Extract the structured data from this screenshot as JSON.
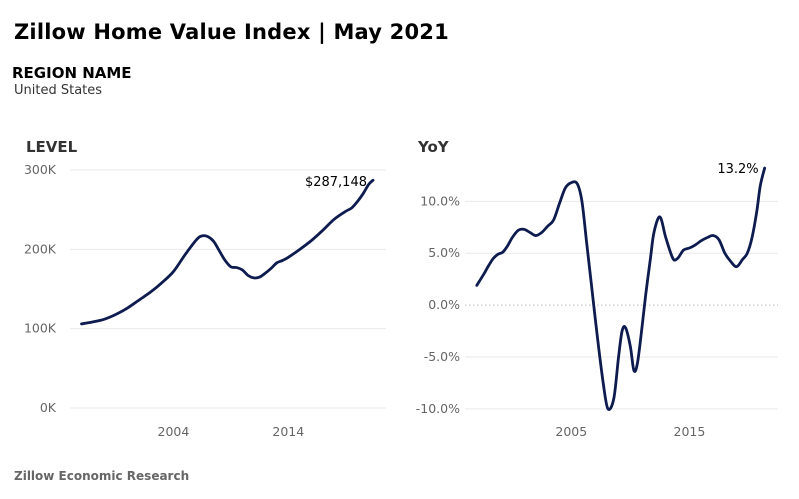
{
  "header": {
    "title": "Zillow Home Value Index | May 2021",
    "region_label": "REGION NAME",
    "region_value": "United States"
  },
  "footer": {
    "source": "Zillow Economic Research"
  },
  "colors": {
    "series": "#0d1b4f",
    "grid": "#e9e9e9",
    "tick": "#666666"
  },
  "chart_data": [
    {
      "id": "level",
      "type": "line",
      "title": "LEVEL",
      "x_ticks": [
        {
          "value": 2004,
          "label": "2004"
        },
        {
          "value": 2014,
          "label": "2014"
        }
      ],
      "y_ticks": [
        {
          "value": 0,
          "label": "0K"
        },
        {
          "value": 100000,
          "label": "100K"
        },
        {
          "value": 200000,
          "label": "200K"
        },
        {
          "value": 300000,
          "label": "300K"
        }
      ],
      "xlim": [
        1995,
        2022.5
      ],
      "ylim": [
        0,
        300000
      ],
      "grid": true,
      "annotation": {
        "x": 2021.37,
        "y": 287148,
        "label": "$287,148"
      },
      "series": [
        {
          "x": [
            1996.0,
            1997.0,
            1998.0,
            1999.0,
            2000.0,
            2001.0,
            2002.0,
            2003.0,
            2004.0,
            2005.0,
            2006.0,
            2006.5,
            2007.0,
            2007.5,
            2008.0,
            2008.5,
            2009.0,
            2009.5,
            2010.0,
            2010.5,
            2011.0,
            2011.5,
            2012.0,
            2012.5,
            2013.0,
            2013.5,
            2014.0,
            2015.0,
            2016.0,
            2017.0,
            2018.0,
            2019.0,
            2019.5,
            2020.0,
            2020.5,
            2021.0,
            2021.37
          ],
          "y": [
            106000,
            108500,
            112000,
            118000,
            126000,
            136000,
            146000,
            158000,
            172000,
            193000,
            212000,
            217000,
            216000,
            210000,
            198000,
            186000,
            178000,
            177000,
            174000,
            167000,
            164000,
            165000,
            170000,
            176000,
            183000,
            186000,
            190000,
            200000,
            211000,
            224000,
            238000,
            248000,
            252000,
            260000,
            270000,
            282000,
            287148
          ]
        }
      ]
    },
    {
      "id": "yoy",
      "type": "line",
      "title": "YoY",
      "x_ticks": [
        {
          "value": 2005,
          "label": "2005"
        },
        {
          "value": 2015,
          "label": "2015"
        }
      ],
      "y_ticks": [
        {
          "value": -10,
          "label": "-10.0%"
        },
        {
          "value": -5,
          "label": "-5.0%"
        },
        {
          "value": 0,
          "label": "0.0%"
        },
        {
          "value": 5,
          "label": "5.0%"
        },
        {
          "value": 10,
          "label": "10.0%"
        }
      ],
      "xlim": [
        1996,
        2022.5
      ],
      "ylim": [
        -10.5,
        13.5
      ],
      "grid": true,
      "annotation": {
        "x": 2021.37,
        "y": 13.2,
        "label": "13.2%"
      },
      "series": [
        {
          "x": [
            1997.0,
            1997.6,
            1998.0,
            1998.4,
            1998.8,
            1999.2,
            1999.6,
            2000.0,
            2000.5,
            2001.0,
            2001.5,
            2002.0,
            2002.5,
            2003.0,
            2003.5,
            2004.0,
            2004.5,
            2005.0,
            2005.5,
            2005.9,
            2006.3,
            2006.7,
            2007.2,
            2007.7,
            2008.1,
            2008.6,
            2009.0,
            2009.3,
            2009.6,
            2010.0,
            2010.3,
            2010.6,
            2011.0,
            2011.3,
            2011.7,
            2012.0,
            2012.5,
            2013.0,
            2013.6,
            2014.0,
            2014.5,
            2015.0,
            2015.5,
            2016.0,
            2016.5,
            2017.0,
            2017.5,
            2018.0,
            2018.5,
            2019.0,
            2019.5,
            2019.9,
            2020.3,
            2020.7,
            2021.0,
            2021.37
          ],
          "y": [
            1.9,
            3.0,
            3.8,
            4.5,
            4.9,
            5.1,
            5.7,
            6.5,
            7.2,
            7.3,
            7.0,
            6.7,
            7.0,
            7.6,
            8.2,
            9.8,
            11.3,
            11.8,
            11.7,
            10.0,
            6.0,
            2.0,
            -3.0,
            -7.5,
            -10.0,
            -9.0,
            -5.0,
            -2.5,
            -2.2,
            -4.0,
            -6.3,
            -5.6,
            -2.0,
            1.0,
            4.5,
            7.0,
            8.5,
            6.5,
            4.5,
            4.5,
            5.3,
            5.5,
            5.8,
            6.2,
            6.5,
            6.7,
            6.3,
            5.0,
            4.2,
            3.7,
            4.4,
            5.0,
            6.5,
            9.0,
            11.5,
            13.2
          ]
        }
      ]
    }
  ]
}
